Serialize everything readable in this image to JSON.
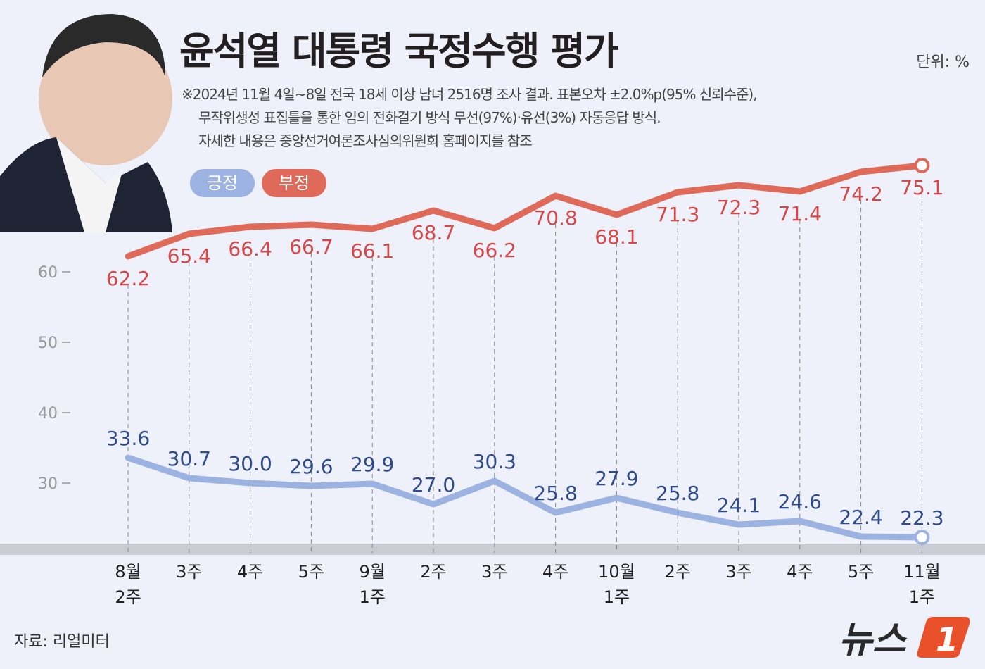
{
  "title": "윤석열 대통령 국정수행 평가",
  "unit": "단위: %",
  "notes": [
    "※2024년 11월 4일~8일 전국 18세 이상 남녀 2516명 조사 결과. 표본오차 ±2.0%p(95% 신뢰수준),",
    "무작위생성 표집틀을 통한 임의 전화걸기 방식 무선(97%)·유선(3%) 자동응답 방식.",
    "자세한 내용은 중앙선거여론조사심의위원회 홈페이지를 참조"
  ],
  "source": "자료: 리얼미터",
  "logo_text": "뉴스1",
  "chart_data": {
    "type": "line",
    "categories": [
      "8월\n2주",
      "3주",
      "4주",
      "5주",
      "9월\n1주",
      "2주",
      "3주",
      "4주",
      "10월\n1주",
      "2주",
      "3주",
      "4주",
      "5주",
      "11월\n1주"
    ],
    "yticks": [
      30,
      40,
      50,
      60
    ],
    "series": [
      {
        "name": "부정",
        "color": "#e06a5a",
        "label_color": "#d64848",
        "values": [
          62.2,
          65.4,
          66.4,
          66.7,
          66.1,
          68.7,
          66.2,
          70.8,
          68.1,
          71.3,
          72.3,
          71.4,
          74.2,
          75.1
        ]
      },
      {
        "name": "긍정",
        "color": "#9cb3e2",
        "label_color": "#2f4b8c",
        "values": [
          33.6,
          30.7,
          30.0,
          29.6,
          29.9,
          27.0,
          30.3,
          25.8,
          27.9,
          25.8,
          24.1,
          24.6,
          22.4,
          22.3
        ]
      }
    ],
    "grid": "vertical dashed lines",
    "legend": "top-left"
  }
}
